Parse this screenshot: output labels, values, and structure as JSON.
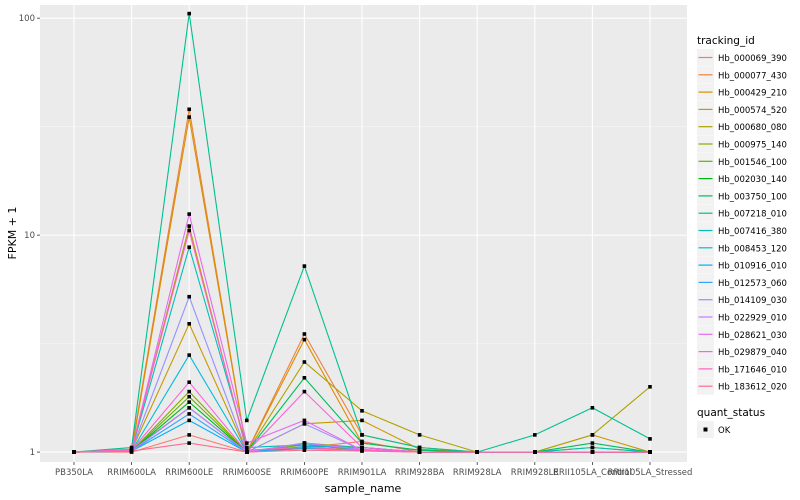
{
  "chart_data": {
    "type": "line",
    "xlabel": "sample_name",
    "ylabel": "FPKM + 1",
    "y_scale": "log10",
    "ylim": [
      0.9,
      115
    ],
    "y_ticks": [
      1,
      10,
      100
    ],
    "y_tick_labels": [
      "1",
      "10",
      "100"
    ],
    "categories": [
      "PB350LA",
      "RRIM600LA",
      "RRIM600LE",
      "RRIM600SE",
      "RRIM600PE",
      "RRIM901LA",
      "RRIM928BA",
      "RRIM928LA",
      "RRIM928LE",
      "RRII105LA_Control",
      "RRII105LA_Stressed"
    ],
    "legend": {
      "title": "tracking_id",
      "placement": "right",
      "quant_title": "quant_status",
      "quant_label": "OK"
    },
    "series": [
      {
        "name": "Hb_000069_390",
        "color": "#F8766D",
        "values": [
          1,
          1,
          1.2,
          1,
          1.05,
          1.12,
          1,
          1,
          1,
          1,
          1
        ]
      },
      {
        "name": "Hb_000077_430",
        "color": "#EC8239",
        "values": [
          1,
          1.03,
          38,
          1,
          3.5,
          1.2,
          1.05,
          1,
          1,
          1,
          1
        ]
      },
      {
        "name": "Hb_000429_210",
        "color": "#DB8E00",
        "values": [
          1,
          1.01,
          35,
          1,
          3.3,
          1.1,
          1.02,
          1,
          1,
          1,
          1
        ]
      },
      {
        "name": "Hb_000574_520",
        "color": "#C79800",
        "values": [
          1,
          1.02,
          3.9,
          1,
          1.35,
          1.4,
          1.03,
          1,
          1,
          1.2,
          1
        ]
      },
      {
        "name": "Hb_000680_080",
        "color": "#AEA200",
        "values": [
          1,
          1.02,
          11,
          1,
          2.6,
          1.55,
          1.2,
          1,
          1,
          1.2,
          2
        ]
      },
      {
        "name": "Hb_000975_140",
        "color": "#8FAA00",
        "values": [
          1,
          1.01,
          1.9,
          1,
          1.1,
          1.05,
          1,
          1,
          1,
          1.05,
          1
        ]
      },
      {
        "name": "Hb_001546_100",
        "color": "#64B200",
        "values": [
          1,
          1.01,
          1.8,
          1,
          1.08,
          1.02,
          1,
          1,
          1,
          1,
          1
        ]
      },
      {
        "name": "Hb_002030_140",
        "color": "#00B813",
        "values": [
          1,
          1.01,
          1.7,
          1,
          1.05,
          1.02,
          1,
          1,
          1,
          1,
          1
        ]
      },
      {
        "name": "Hb_003750_100",
        "color": "#00BD5C",
        "values": [
          1,
          1.02,
          1.6,
          1,
          2.2,
          1.1,
          1.02,
          1,
          1,
          1.1,
          1
        ]
      },
      {
        "name": "Hb_007218_010",
        "color": "#00C08E",
        "values": [
          1,
          1.05,
          105,
          1.4,
          7.2,
          1.2,
          1.05,
          1,
          1.2,
          1.6,
          1.15
        ]
      },
      {
        "name": "Hb_007416_380",
        "color": "#00C0B8",
        "values": [
          1,
          1.02,
          8.8,
          1.05,
          1.08,
          1.05,
          1,
          1,
          1,
          1.05,
          1
        ]
      },
      {
        "name": "Hb_008453_120",
        "color": "#00BCD8",
        "values": [
          1,
          1.01,
          2.8,
          1,
          1.04,
          1.02,
          1,
          1,
          1,
          1,
          1
        ]
      },
      {
        "name": "Hb_010916_010",
        "color": "#00B0F6",
        "values": [
          1,
          1.01,
          1.4,
          1,
          1.06,
          1.05,
          1,
          1,
          1,
          1,
          1
        ]
      },
      {
        "name": "Hb_012573_060",
        "color": "#35A2FF",
        "values": [
          1,
          1.01,
          1.5,
          1,
          1.1,
          1.02,
          1,
          1,
          1,
          1,
          1
        ]
      },
      {
        "name": "Hb_014109_030",
        "color": "#9590FF",
        "values": [
          1,
          1.02,
          5.2,
          1,
          1.35,
          1.02,
          1,
          1,
          1,
          1,
          1
        ]
      },
      {
        "name": "Hb_022929_010",
        "color": "#C77CFF",
        "values": [
          1,
          1.01,
          1.6,
          1,
          1.1,
          1.03,
          1,
          1,
          1,
          1,
          1
        ]
      },
      {
        "name": "Hb_028621_030",
        "color": "#E76BF3",
        "values": [
          1,
          1.02,
          12.5,
          1.1,
          1.4,
          1.02,
          1,
          1,
          1,
          1,
          1
        ]
      },
      {
        "name": "Hb_029879_040",
        "color": "#FA62DB",
        "values": [
          1,
          1.02,
          2.1,
          1,
          1.9,
          1.05,
          1,
          1,
          1,
          1,
          1
        ]
      },
      {
        "name": "Hb_171646_010",
        "color": "#FF62BC",
        "values": [
          1,
          1.03,
          10.5,
          1.02,
          1.05,
          1.02,
          1,
          1,
          1,
          1,
          1
        ]
      },
      {
        "name": "Hb_183612_020",
        "color": "#FF6C91",
        "values": [
          1,
          1.01,
          1.1,
          1,
          1.02,
          1.01,
          1,
          1,
          1,
          1,
          1
        ]
      }
    ]
  }
}
